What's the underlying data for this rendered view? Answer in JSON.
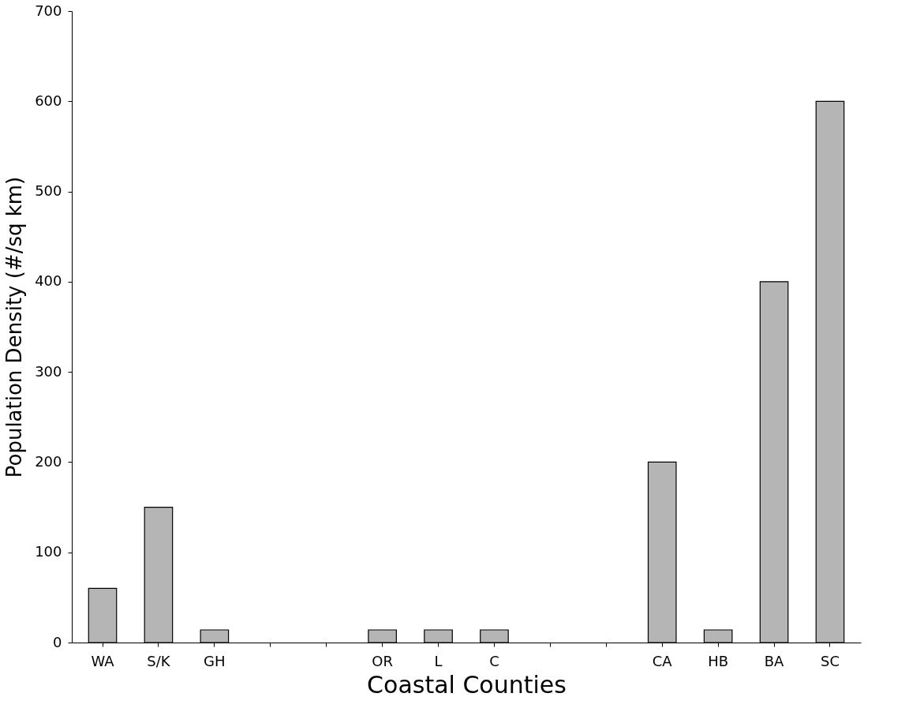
{
  "chart_data": {
    "type": "bar",
    "xlabel": "Coastal Counties",
    "ylabel": "Population Density (#/sq km)",
    "categories": [
      "WA",
      "S/K",
      "GH",
      null,
      null,
      "OR",
      "L",
      "C",
      null,
      null,
      "CA",
      "HB",
      "BA",
      "SC"
    ],
    "values": [
      60,
      150,
      14,
      null,
      null,
      14,
      14,
      14,
      null,
      null,
      200,
      14,
      400,
      600
    ],
    "color": "#b5b5b5",
    "ylim": [
      0,
      700
    ],
    "yticks": [
      0,
      100,
      200,
      300,
      400,
      500,
      600,
      700
    ],
    "grid": false
  }
}
